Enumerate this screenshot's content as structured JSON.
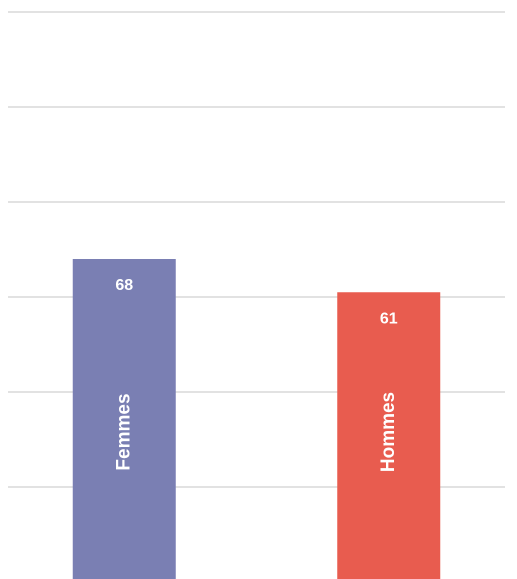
{
  "chart_data": {
    "type": "bar",
    "categories": [
      "Femmes",
      "Hommes"
    ],
    "values": [
      68,
      61
    ],
    "colors": [
      "#7a7fb3",
      "#e85c4f"
    ],
    "ylim": [
      0,
      120
    ],
    "yticks": [
      0,
      20,
      40,
      60,
      80,
      100,
      120
    ],
    "ytick_labels": false,
    "grid": true
  }
}
